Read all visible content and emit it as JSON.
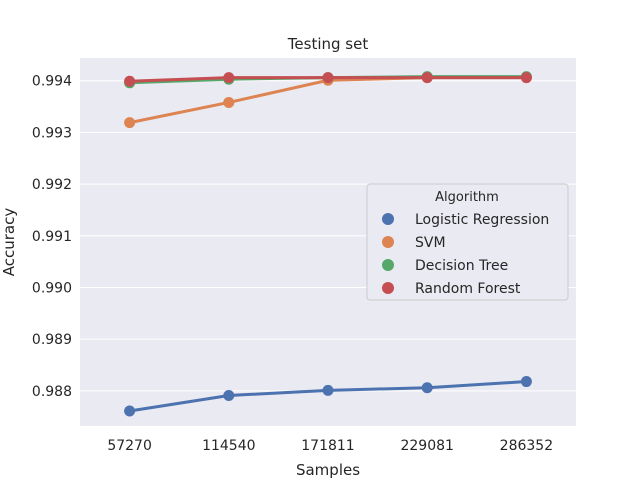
{
  "chart_data": {
    "type": "line",
    "title": "Testing set",
    "xlabel": "Samples",
    "ylabel": "Accuracy",
    "categories": [
      "57270",
      "114540",
      "171811",
      "229081",
      "286352"
    ],
    "ylim": [
      0.98732,
      0.99444
    ],
    "yticks": [
      "0.988",
      "0.989",
      "0.990",
      "0.991",
      "0.992",
      "0.993",
      "0.994"
    ],
    "grid": true,
    "legend": {
      "title": "Algorithm",
      "placement": "center-right"
    },
    "series": [
      {
        "name": "Logistic Regression",
        "color": "#4c72b0",
        "values": [
          0.98761,
          0.98791,
          0.98801,
          0.98806,
          0.98818
        ]
      },
      {
        "name": "SVM",
        "color": "#dd8452",
        "values": [
          0.99319,
          0.99358,
          0.99401,
          0.99406,
          0.99406
        ]
      },
      {
        "name": "Decision Tree",
        "color": "#55a868",
        "values": [
          0.99396,
          0.99403,
          0.99406,
          0.99408,
          0.99408
        ]
      },
      {
        "name": "Random Forest",
        "color": "#c44e52",
        "values": [
          0.99399,
          0.99406,
          0.99406,
          0.99406,
          0.99406
        ]
      }
    ]
  }
}
